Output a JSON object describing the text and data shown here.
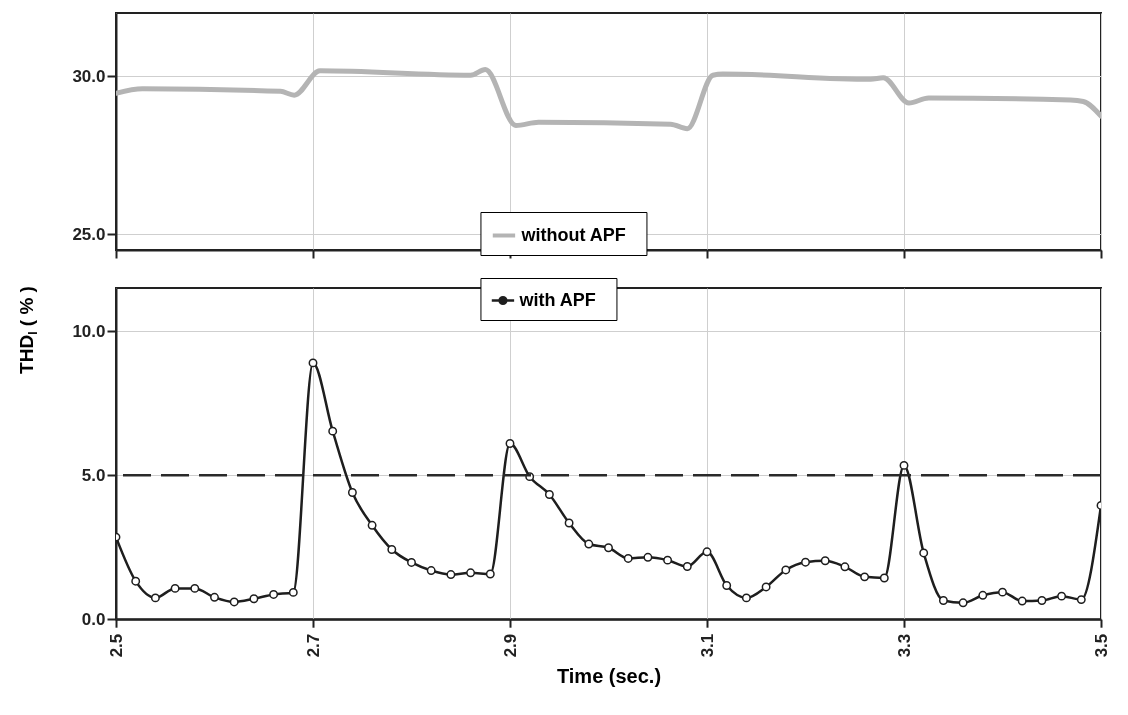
{
  "chart_data": [
    {
      "type": "line",
      "ylim": [
        24.5,
        32
      ],
      "yticks": [
        {
          "value": 25,
          "label": "25.0"
        },
        {
          "value": 30,
          "label": "30.0"
        }
      ],
      "xlim": [
        2.5,
        3.5
      ],
      "xticks": [
        2.5,
        2.7,
        2.9,
        3.1,
        3.3,
        3.5
      ],
      "tick_labels": "y",
      "grid": true,
      "legend": "bottom",
      "series": [
        {
          "name": "without   APF",
          "color": "#b4b4b4",
          "marker": "none",
          "x": [
            2.5,
            2.527,
            2.667,
            2.681,
            2.707,
            2.86,
            2.875,
            2.906,
            2.929,
            3.063,
            3.08,
            3.106,
            3.116,
            3.266,
            3.279,
            3.305,
            3.325,
            3.469,
            3.482,
            3.5
          ],
          "values": [
            29.46,
            29.6,
            29.52,
            29.4,
            30.17,
            30.03,
            30.21,
            28.44,
            28.54,
            28.48,
            28.34,
            30.03,
            30.07,
            29.9,
            29.95,
            29.15,
            29.31,
            29.25,
            29.2,
            28.74
          ]
        }
      ]
    },
    {
      "type": "line",
      "ylim": [
        0,
        11.5
      ],
      "yticks": [
        {
          "value": 0,
          "label": "0.0"
        },
        {
          "value": 5,
          "label": "5.0"
        },
        {
          "value": 10,
          "label": "10.0"
        }
      ],
      "xlim": [
        2.5,
        3.5
      ],
      "xticks": [
        2.5,
        2.7,
        2.9,
        3.1,
        3.3,
        3.5
      ],
      "grid": true,
      "legend": "top",
      "xlabel": "Time (sec.)",
      "ylabel": "THD$_{I}$ ( % )",
      "ref_lines": [
        {
          "axis": "y",
          "value": 5,
          "color": "#2a2a2a",
          "line_style": "dashed"
        }
      ],
      "series": [
        {
          "name": "with   APF",
          "color": "#1e1e1e",
          "marker": "circle",
          "x": [
            2.5,
            2.52,
            2.54,
            2.56,
            2.58,
            2.6,
            2.62,
            2.64,
            2.66,
            2.68,
            2.7,
            2.72,
            2.74,
            2.76,
            2.78,
            2.8,
            2.82,
            2.84,
            2.86,
            2.88,
            2.9,
            2.92,
            2.94,
            2.96,
            2.98,
            3.0,
            3.02,
            3.04,
            3.06,
            3.08,
            3.1,
            3.12,
            3.14,
            3.16,
            3.18,
            3.2,
            3.22,
            3.24,
            3.26,
            3.28,
            3.3,
            3.32,
            3.34,
            3.36,
            3.38,
            3.4,
            3.42,
            3.44,
            3.46,
            3.48,
            3.5
          ],
          "values": [
            2.85,
            1.32,
            0.74,
            1.07,
            1.07,
            0.76,
            0.6,
            0.71,
            0.86,
            0.93,
            8.9,
            6.53,
            4.4,
            3.26,
            2.42,
            1.97,
            1.69,
            1.55,
            1.61,
            1.57,
            6.1,
            4.95,
            4.33,
            3.34,
            2.61,
            2.48,
            2.11,
            2.15,
            2.05,
            1.83,
            2.34,
            1.17,
            0.74,
            1.12,
            1.71,
            1.98,
            2.03,
            1.82,
            1.47,
            1.43,
            5.34,
            2.3,
            0.65,
            0.57,
            0.83,
            0.94,
            0.63,
            0.65,
            0.8,
            0.68,
            3.95
          ]
        }
      ]
    }
  ]
}
